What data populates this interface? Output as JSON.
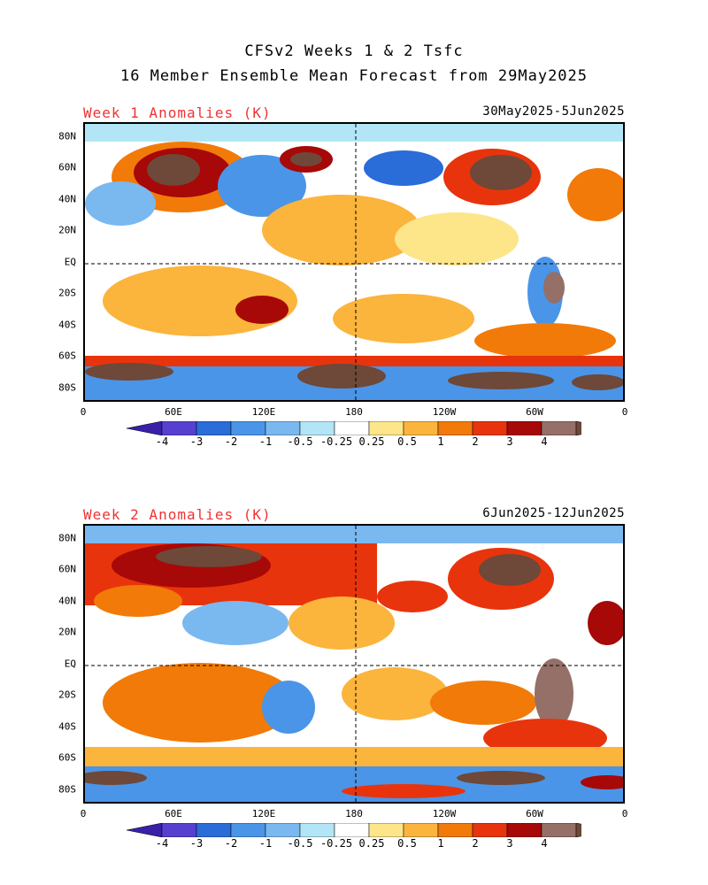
{
  "title_line1": "CFSv2 Weeks 1 & 2 Tsfc",
  "title_line2": "16 Member Ensemble Mean Forecast from 29May2025",
  "panels": [
    {
      "label": "Week 1 Anomalies (K)",
      "dates": "30May2025-5Jun2025"
    },
    {
      "label": "Week 2 Anomalies (K)",
      "dates": "6Jun2025-12Jun2025"
    }
  ],
  "lat_labels": [
    "80N",
    "60N",
    "40N",
    "20N",
    "EQ",
    "20S",
    "40S",
    "60S",
    "80S"
  ],
  "lon_labels": [
    "0",
    "60E",
    "120E",
    "180",
    "120W",
    "60W",
    "0"
  ],
  "colorbar": {
    "labels": [
      "-4",
      "-3",
      "-2",
      "-1",
      "-0.5",
      "-0.25",
      "0.25",
      "0.5",
      "1",
      "2",
      "3",
      "4"
    ],
    "colors": [
      "#3a1fa8",
      "#5540d0",
      "#2a6cd8",
      "#4a95e8",
      "#7ab8f0",
      "#b2e6f6",
      "#ffffff",
      "#fde58a",
      "#fbb43c",
      "#f27a08",
      "#e8340c",
      "#a70808",
      "#947068",
      "#6e4838"
    ]
  }
}
